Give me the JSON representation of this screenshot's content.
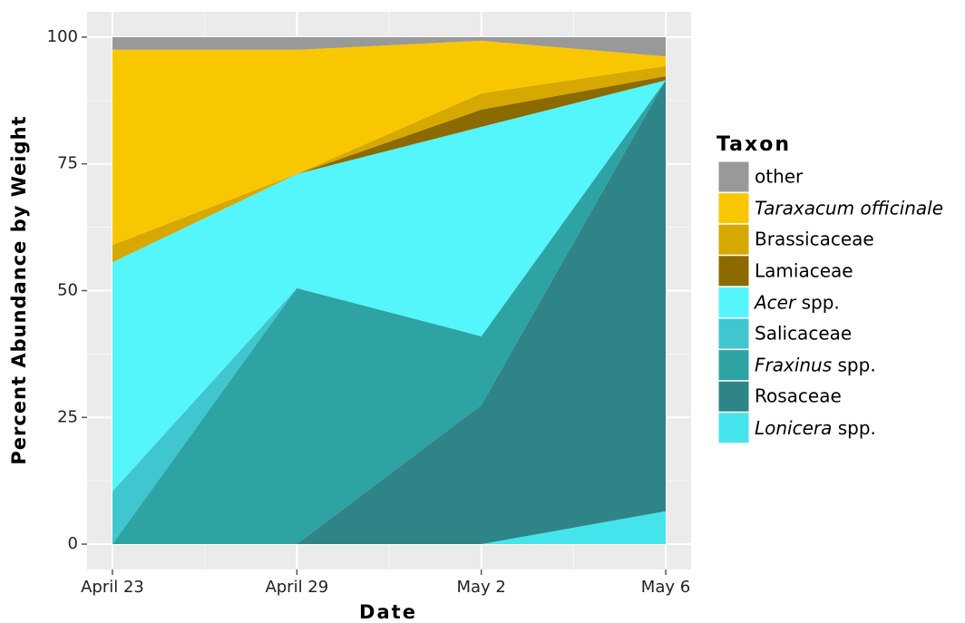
{
  "chart_data": {
    "type": "area",
    "stacked": true,
    "x_label": "Date",
    "y_label": "Percent Abundance by Weight",
    "legend_title": "Taxon",
    "legend": "right",
    "grid": true,
    "categories": [
      "April 23",
      "April 29",
      "May 2",
      "May 6"
    ],
    "ylim": [
      -5,
      105
    ],
    "yticks": [
      0,
      25,
      50,
      75,
      100
    ],
    "series": [
      {
        "name": "Lonicera spp.",
        "color": "#45e4ec",
        "values": [
          0,
          0,
          0,
          6.5
        ]
      },
      {
        "name": "Rosaceae",
        "color": "#2e8486",
        "values": [
          0,
          0,
          27.4,
          85
        ]
      },
      {
        "name": "Fraxinus spp.",
        "color": "#2ea3a3",
        "values": [
          0,
          50.5,
          13.6,
          0
        ]
      },
      {
        "name": "Salicaceae",
        "color": "#3fc6cf",
        "values": [
          10.4,
          0,
          0,
          0
        ]
      },
      {
        "name": "Acer spp.",
        "color": "#55f5fc",
        "values": [
          45.2,
          22.5,
          41.3,
          0
        ]
      },
      {
        "name": "Lamiaceae",
        "color": "#8b6a00",
        "values": [
          0,
          0,
          3.4,
          0.8
        ]
      },
      {
        "name": "Brassicaceae",
        "color": "#d6a800",
        "values": [
          3.4,
          0,
          3.2,
          2
        ]
      },
      {
        "name": "Taraxacum officinale",
        "color": "#f9c700",
        "values": [
          38.5,
          24.5,
          10.4,
          1.9
        ]
      },
      {
        "name": "other",
        "color": "#999999",
        "values": [
          2.5,
          2.5,
          0.7,
          3.8
        ]
      }
    ]
  }
}
